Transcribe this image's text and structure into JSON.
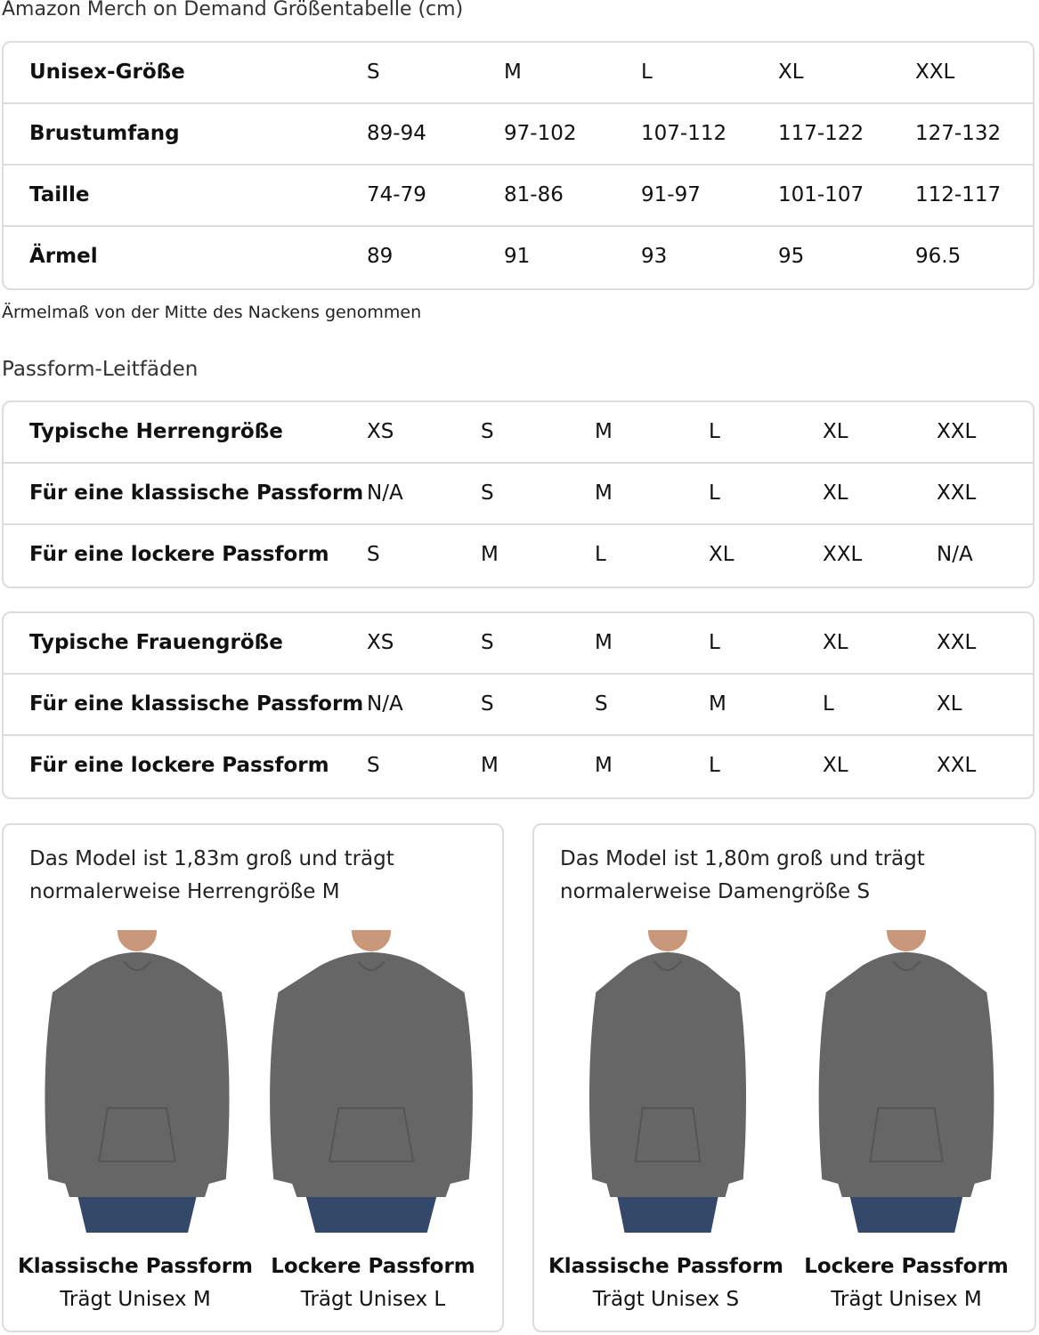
{
  "title": "Amazon Merch on Demand Größentabelle (cm)",
  "unisex_table": {
    "rows": [
      {
        "label": "Unisex-Größe",
        "values": [
          "S",
          "M",
          "L",
          "XL",
          "XXL"
        ]
      },
      {
        "label": "Brustumfang",
        "values": [
          "89-94",
          "97-102",
          "107-112",
          "117-122",
          "127-132"
        ]
      },
      {
        "label": "Taille",
        "values": [
          "74-79",
          "81-86",
          "91-97",
          "101-107",
          "112-117"
        ]
      },
      {
        "label": "Ärmel",
        "values": [
          "89",
          "91",
          "93",
          "95",
          "96.5"
        ]
      }
    ]
  },
  "note": "Ärmelmaß von der Mitte des Nackens genommen",
  "fit_guides_title": "Passform-Leitfäden",
  "men_table": {
    "rows": [
      {
        "label": "Typische Herrengröße",
        "values": [
          "XS",
          "S",
          "M",
          "L",
          "XL",
          "XXL"
        ]
      },
      {
        "label": "Für eine klassische Passform",
        "values": [
          "N/A",
          "S",
          "M",
          "L",
          "XL",
          "XXL"
        ]
      },
      {
        "label": "Für eine lockere Passform",
        "values": [
          "S",
          "M",
          "L",
          "XL",
          "XXL",
          "N/A"
        ]
      }
    ]
  },
  "women_table": {
    "rows": [
      {
        "label": "Typische Frauengröße",
        "values": [
          "XS",
          "S",
          "M",
          "L",
          "XL",
          "XXL"
        ]
      },
      {
        "label": "Für eine klassische Passform",
        "values": [
          "N/A",
          "S",
          "S",
          "M",
          "L",
          "XL"
        ]
      },
      {
        "label": "Für eine lockere Passform",
        "values": [
          "S",
          "M",
          "M",
          "L",
          "XL",
          "XXL"
        ]
      }
    ]
  },
  "cards": [
    {
      "text1": "Das Model ist 1,83m groß und trägt",
      "text2": "normalerweise Herrengröße M",
      "models": [
        {
          "fit": "Klassische Passform",
          "wears": "Trägt Unisex M"
        },
        {
          "fit": "Lockere Passform",
          "wears": "Trägt Unisex L"
        }
      ]
    },
    {
      "text1": "Das Model ist 1,80m groß und trägt",
      "text2": "normalerweise Damengröße S",
      "models": [
        {
          "fit": "Klassische Passform",
          "wears": "Trägt Unisex S"
        },
        {
          "fit": "Lockere Passform",
          "wears": "Trägt Unisex M"
        }
      ]
    }
  ],
  "colors": {
    "hoodie": "#666666",
    "jeans": "#34486a",
    "border": "#dcdcdc",
    "text": "#111111"
  }
}
